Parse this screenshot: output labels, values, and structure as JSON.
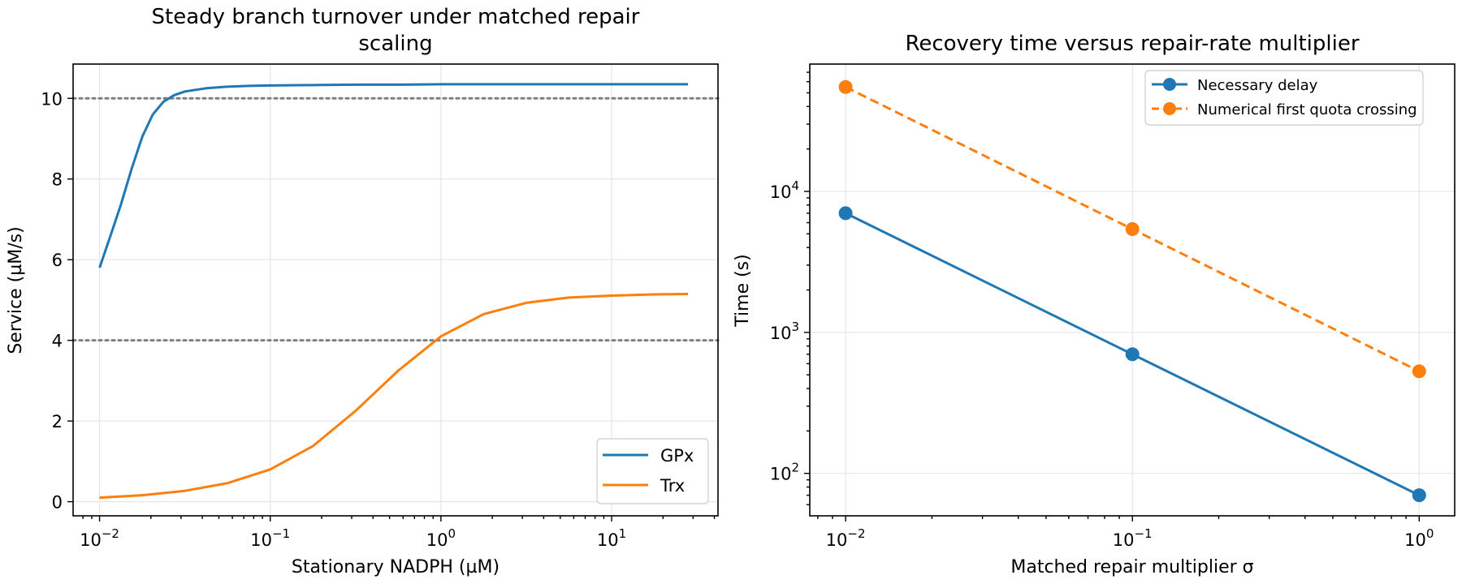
{
  "colors": {
    "blue": "#1f77b4",
    "orange": "#ff7f0e",
    "reference": "#808080"
  },
  "chart_data": [
    {
      "type": "line",
      "title": "Steady branch turnover under matched repair scaling",
      "title_lines": [
        "Steady branch turnover under matched repair",
        "scaling"
      ],
      "xlabel": "Stationary NADPH (µM)",
      "ylabel": "Service (µM/s)",
      "xscale": "log",
      "xlim": [
        0.007,
        42
      ],
      "ylim": [
        -0.35,
        10.85
      ],
      "x_ticks": [
        {
          "value": 0.01,
          "base": "10",
          "exp": "−2"
        },
        {
          "value": 0.1,
          "base": "10",
          "exp": "−1"
        },
        {
          "value": 1,
          "base": "10",
          "exp": "0"
        },
        {
          "value": 10,
          "base": "10",
          "exp": "1"
        }
      ],
      "y_ticks": [
        {
          "value": 0,
          "label": "0"
        },
        {
          "value": 2,
          "label": "2"
        },
        {
          "value": 4,
          "label": "4"
        },
        {
          "value": 6,
          "label": "6"
        },
        {
          "value": 8,
          "label": "8"
        },
        {
          "value": 10,
          "label": "10"
        }
      ],
      "reference_lines": [
        10,
        4
      ],
      "grid": true,
      "legend": "lower-right",
      "series": [
        {
          "name": "GPx",
          "color": "#1f77b4",
          "x": [
            0.01,
            0.0115,
            0.0133,
            0.0154,
            0.0178,
            0.0205,
            0.0237,
            0.0274,
            0.0316,
            0.0422,
            0.0562,
            0.075,
            0.1,
            0.178,
            0.316,
            0.562,
            1,
            1.78,
            3.16,
            5.62,
            10,
            17.8,
            28
          ],
          "y": [
            5.8,
            6.55,
            7.35,
            8.25,
            9.05,
            9.6,
            9.92,
            10.08,
            10.17,
            10.25,
            10.29,
            10.31,
            10.32,
            10.33,
            10.34,
            10.34,
            10.35,
            10.35,
            10.35,
            10.35,
            10.35,
            10.35,
            10.35
          ]
        },
        {
          "name": "Trx",
          "color": "#ff7f0e",
          "x": [
            0.01,
            0.0178,
            0.0316,
            0.0562,
            0.1,
            0.178,
            0.316,
            0.562,
            1,
            1.78,
            3.16,
            5.62,
            10,
            17.8,
            28
          ],
          "y": [
            0.1,
            0.16,
            0.27,
            0.46,
            0.8,
            1.38,
            2.25,
            3.25,
            4.1,
            4.65,
            4.93,
            5.06,
            5.11,
            5.14,
            5.15
          ]
        }
      ]
    },
    {
      "type": "line",
      "title": "Recovery time versus repair-rate multiplier",
      "xlabel": "Matched repair multiplier σ",
      "ylabel": "Time (s)",
      "xscale": "log",
      "yscale": "log",
      "xlim": [
        0.0075,
        1.33
      ],
      "ylim": [
        50,
        80000
      ],
      "x_ticks": [
        {
          "value": 0.01,
          "base": "10",
          "exp": "−2"
        },
        {
          "value": 0.1,
          "base": "10",
          "exp": "−1"
        },
        {
          "value": 1,
          "base": "10",
          "exp": "0"
        }
      ],
      "y_ticks": [
        {
          "value": 100,
          "base": "10",
          "exp": "2"
        },
        {
          "value": 1000,
          "base": "10",
          "exp": "3"
        },
        {
          "value": 10000,
          "base": "10",
          "exp": "4"
        }
      ],
      "grid": true,
      "legend": "top-right",
      "series": [
        {
          "name": "Necessary delay",
          "color": "#1f77b4",
          "style": "solid",
          "markers": true,
          "x": [
            0.01,
            0.1,
            1
          ],
          "y": [
            7000,
            700,
            70
          ]
        },
        {
          "name": "Numerical first quota crossing",
          "color": "#ff7f0e",
          "style": "dashed",
          "markers": true,
          "x": [
            0.01,
            0.1,
            1
          ],
          "y": [
            55000,
            5400,
            530
          ]
        }
      ]
    }
  ]
}
